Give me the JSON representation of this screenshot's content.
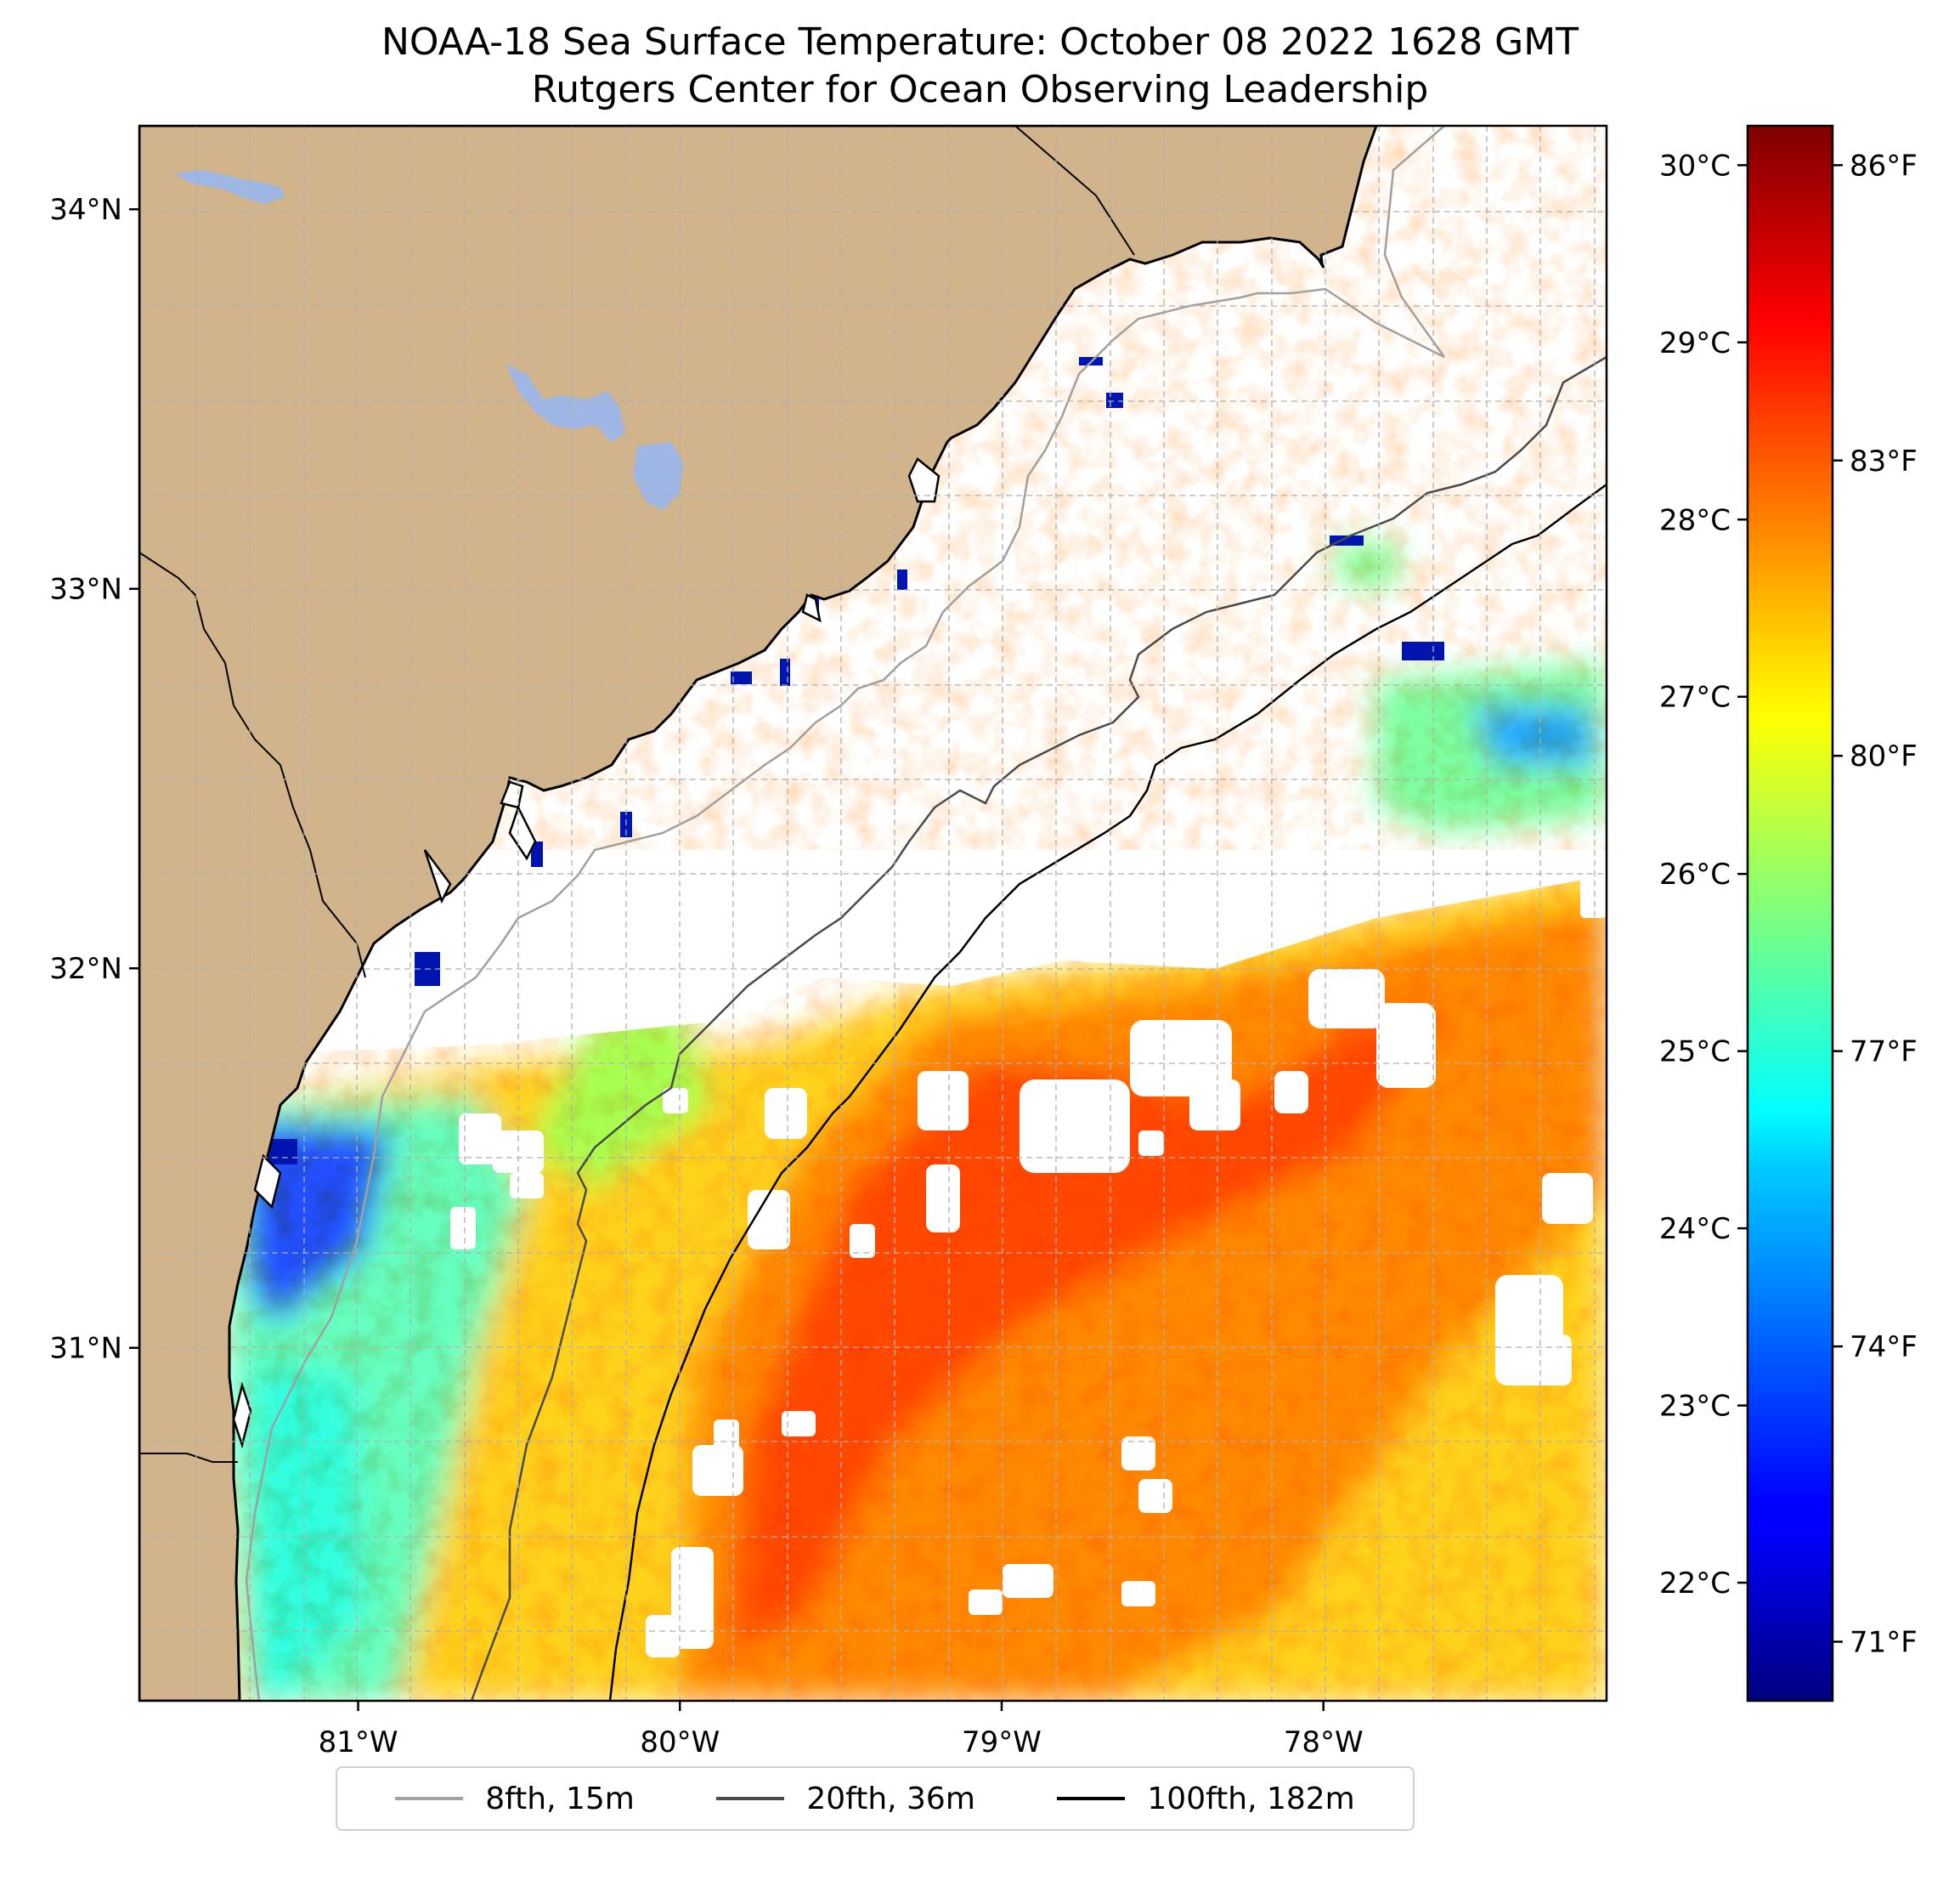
{
  "title": {
    "line1": "NOAA-18 Sea Surface Temperature: October 08 2022 1628 GMT",
    "line2": "Rutgers Center for Ocean Observing Leadership"
  },
  "map": {
    "lon_range": [
      -81.68,
      -77.12
    ],
    "lat_range": [
      30.07,
      34.22
    ],
    "lon_ticks": [
      {
        "value": -81,
        "label": "81°W"
      },
      {
        "value": -80,
        "label": "80°W"
      },
      {
        "value": -79,
        "label": "79°W"
      },
      {
        "value": -78,
        "label": "78°W"
      }
    ],
    "lat_ticks": [
      {
        "value": 31,
        "label": "31°N"
      },
      {
        "value": 32,
        "label": "32°N"
      },
      {
        "value": 33,
        "label": "33°N"
      },
      {
        "value": 34,
        "label": "34°N"
      }
    ],
    "colors": {
      "land": "#d2b48c",
      "lake": "#9db6e4",
      "gridline": "#b0b0b0",
      "contour_8fth": "#a0a0a0",
      "contour_20fth": "#4a4a4a",
      "contour_100fth": "#000000"
    }
  },
  "colorbar": {
    "colormap": "jet",
    "celsius_ticks": [
      {
        "value": 22,
        "label": "22°C"
      },
      {
        "value": 23,
        "label": "23°C"
      },
      {
        "value": 24,
        "label": "24°C"
      },
      {
        "value": 25,
        "label": "25°C"
      },
      {
        "value": 26,
        "label": "26°C"
      },
      {
        "value": 27,
        "label": "27°C"
      },
      {
        "value": 28,
        "label": "28°C"
      },
      {
        "value": 29,
        "label": "29°C"
      },
      {
        "value": 30,
        "label": "30°C"
      }
    ],
    "fahrenheit_ticks": [
      {
        "value": 71,
        "label": "71°F"
      },
      {
        "value": 74,
        "label": "74°F"
      },
      {
        "value": 77,
        "label": "77°F"
      },
      {
        "value": 80,
        "label": "80°F"
      },
      {
        "value": 83,
        "label": "83°F"
      },
      {
        "value": 86,
        "label": "86°F"
      }
    ],
    "range_f": [
      70.4,
      86.4
    ]
  },
  "legend": {
    "items": [
      {
        "label": "8fth, 15m",
        "color": "#a0a0a0"
      },
      {
        "label": "20fth, 36m",
        "color": "#4a4a4a"
      },
      {
        "label": "100fth, 182m",
        "color": "#000000"
      }
    ]
  }
}
